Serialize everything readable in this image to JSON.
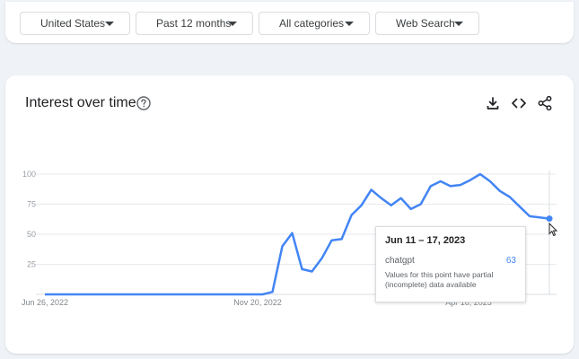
{
  "filters": [
    {
      "label": "United States"
    },
    {
      "label": "Past 12 months"
    },
    {
      "label": "All categories"
    },
    {
      "label": "Web Search"
    }
  ],
  "card": {
    "title": "Interest over time",
    "help_icon": "help-circle-icon",
    "actions": [
      "download-icon",
      "embed-code-icon",
      "share-icon"
    ]
  },
  "colors": {
    "line": "#4285f4",
    "grid": "#e8eaed",
    "tick_text": "#9aa0a6",
    "background": "#eff2f7"
  },
  "tooltip": {
    "date": "Jun 11 – 17, 2023",
    "term": "chatgpt",
    "value": "63",
    "note": "Values for this point have partial (incomplete) data available"
  },
  "chart_data": {
    "type": "line",
    "series": [
      {
        "name": "chatgpt",
        "values": [
          0,
          0,
          0,
          0,
          0,
          0,
          0,
          0,
          0,
          0,
          0,
          0,
          0,
          0,
          0,
          0,
          0,
          0,
          0,
          0,
          0,
          0,
          0,
          2,
          40,
          51,
          21,
          19,
          30,
          45,
          46,
          66,
          74,
          87,
          80,
          74,
          80,
          71,
          75,
          90,
          94,
          90,
          91,
          95,
          100,
          94,
          86,
          81,
          73,
          65,
          64,
          63
        ]
      }
    ],
    "x_tick_labels": [
      "Jun 26, 2022",
      "Nov 20, 2022",
      "Apr 16, 2023"
    ],
    "yticks": [
      25,
      50,
      75,
      100
    ],
    "ylim": [
      0,
      100
    ],
    "grid": true
  }
}
